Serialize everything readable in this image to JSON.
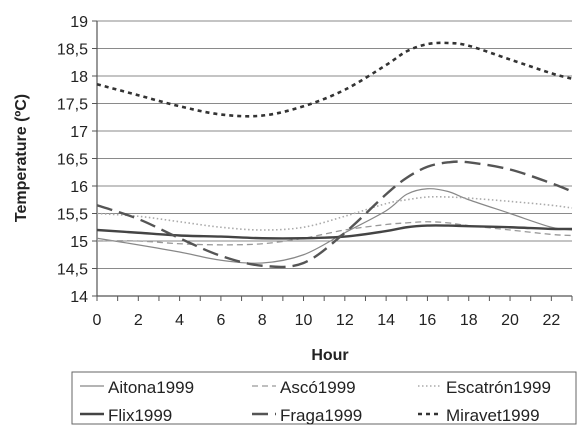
{
  "chart_data": {
    "type": "line",
    "xlabel": "Hour",
    "ylabel": "Temperature (ºC)",
    "xlim": [
      0,
      23
    ],
    "ylim": [
      14,
      19
    ],
    "grid": "horizontal",
    "legend_position": "bottom",
    "x_ticks": [
      "0",
      "2",
      "4",
      "6",
      "8",
      "10",
      "12",
      "14",
      "16",
      "18",
      "20",
      "22"
    ],
    "y_ticks": [
      "14",
      "14,5",
      "15",
      "15,5",
      "16",
      "16,5",
      "17",
      "17,5",
      "18",
      "18,5",
      "19"
    ],
    "x": [
      0,
      2,
      4,
      6,
      8,
      10,
      12,
      14,
      15,
      16,
      17,
      18,
      20,
      22,
      23
    ],
    "series": [
      {
        "name": "Aitona1999",
        "style": "thin-solid",
        "color": "#888888",
        "values": [
          15.05,
          14.93,
          14.8,
          14.65,
          14.6,
          14.75,
          15.15,
          15.55,
          15.85,
          15.95,
          15.9,
          15.75,
          15.5,
          15.25,
          15.2
        ]
      },
      {
        "name": "Ascó1999",
        "style": "dashed",
        "color": "#999999",
        "values": [
          15.0,
          15.0,
          14.95,
          14.93,
          14.95,
          15.05,
          15.2,
          15.3,
          15.33,
          15.35,
          15.33,
          15.28,
          15.2,
          15.12,
          15.1
        ]
      },
      {
        "name": "Escatrón1999",
        "style": "dotted",
        "color": "#aaaaaa",
        "values": [
          15.5,
          15.45,
          15.35,
          15.25,
          15.2,
          15.25,
          15.45,
          15.68,
          15.75,
          15.8,
          15.8,
          15.78,
          15.72,
          15.65,
          15.6
        ]
      },
      {
        "name": "Flix1999",
        "style": "thick-solid",
        "color": "#444444",
        "values": [
          15.2,
          15.15,
          15.1,
          15.08,
          15.05,
          15.05,
          15.08,
          15.18,
          15.25,
          15.28,
          15.28,
          15.27,
          15.25,
          15.22,
          15.22
        ]
      },
      {
        "name": "Fraga1999",
        "style": "long-dash",
        "color": "#555555",
        "values": [
          15.65,
          15.4,
          15.05,
          14.73,
          14.55,
          14.6,
          15.15,
          15.85,
          16.15,
          16.35,
          16.43,
          16.43,
          16.3,
          16.05,
          15.9
        ]
      },
      {
        "name": "Miravet1999",
        "style": "short-dash",
        "color": "#333333",
        "values": [
          17.85,
          17.65,
          17.45,
          17.3,
          17.28,
          17.45,
          17.75,
          18.2,
          18.45,
          18.58,
          18.6,
          18.55,
          18.3,
          18.05,
          17.95
        ]
      }
    ]
  }
}
